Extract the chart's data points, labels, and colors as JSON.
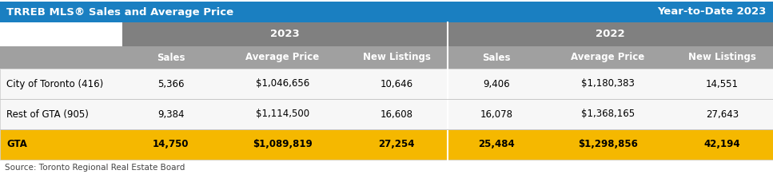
{
  "title_left": "TRREB MLS® Sales and Average Price",
  "title_right": "Year-to-Date 2023",
  "title_bg": "#1a7fc1",
  "title_text_color": "#ffffff",
  "header1_bg": "#808080",
  "header1_text_color": "#ffffff",
  "header2_bg": "#a0a0a0",
  "header2_text_color": "#ffffff",
  "row_bg_white": "#f7f7f7",
  "row_bg_gold": "#f5b800",
  "border_color": "#c8c8c8",
  "source_text": "Source: Toronto Regional Real Estate Board",
  "col_headers": [
    "Sales",
    "Average Price",
    "New Listings",
    "Sales",
    "Average Price",
    "New Listings"
  ],
  "row_labels": [
    "City of Toronto (416)",
    "Rest of GTA (905)",
    "GTA"
  ],
  "row_data": [
    [
      "5,366",
      "$1,046,656",
      "10,646",
      "9,406",
      "$1,180,383",
      "14,551"
    ],
    [
      "9,384",
      "$1,114,500",
      "16,608",
      "16,078",
      "$1,368,165",
      "27,643"
    ],
    [
      "14,750",
      "$1,089,819",
      "27,254",
      "25,484",
      "$1,298,856",
      "42,194"
    ]
  ],
  "row_bold": [
    false,
    false,
    true
  ],
  "figwidth": 9.67,
  "figheight": 2.38,
  "dpi": 100
}
